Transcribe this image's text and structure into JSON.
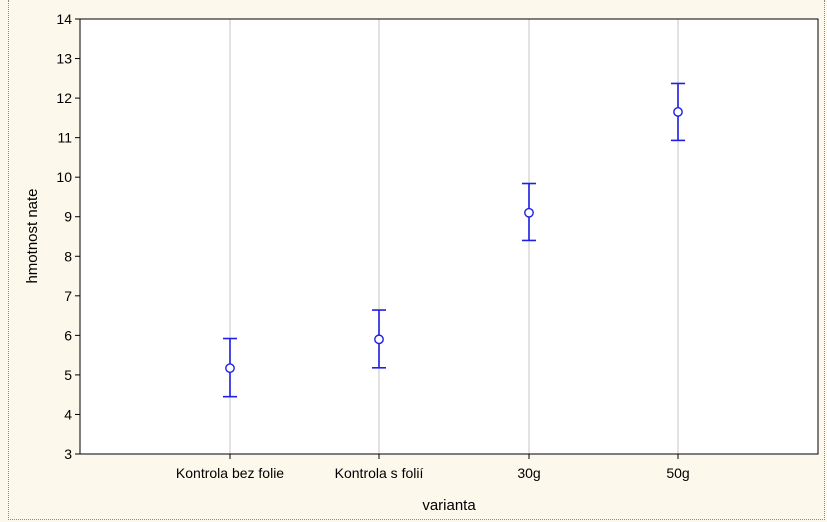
{
  "chart_data": {
    "type": "scatter",
    "title": "",
    "xlabel": "varianta",
    "ylabel": "hmotnost nate",
    "categories": [
      "Kontrola bez folie",
      "Kontrola s folií",
      "30g",
      "50g"
    ],
    "series": [
      {
        "values": [
          5.17,
          5.9,
          9.1,
          11.65
        ],
        "error_low": [
          4.45,
          5.18,
          8.4,
          10.93
        ],
        "error_high": [
          5.92,
          6.64,
          9.84,
          12.37
        ]
      }
    ],
    "ylim": [
      3,
      14
    ],
    "yticks": [
      3,
      4,
      5,
      6,
      7,
      8,
      9,
      10,
      11,
      12,
      13,
      14
    ],
    "grid": true,
    "colors": {
      "series": "#1f1fe6",
      "grid": "#d9d9d9",
      "plot_bg": "#ffffff",
      "axis": "#000000"
    }
  }
}
